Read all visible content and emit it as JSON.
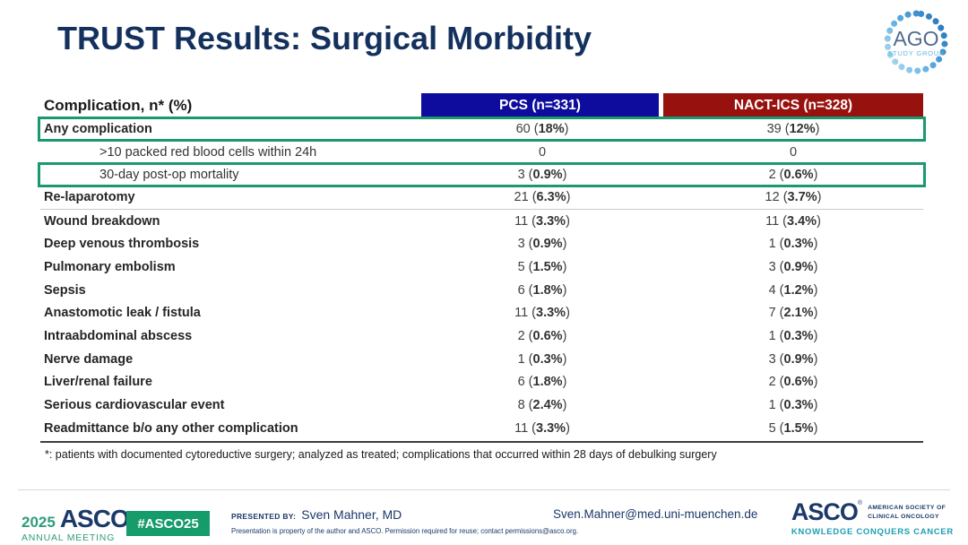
{
  "slide": {
    "title": "TRUST Results: Surgical Morbidity",
    "ago_logo": {
      "name": "AGO",
      "subtitle": "STUDY GROUP"
    }
  },
  "table": {
    "header": {
      "label": "Complication, n* (%)",
      "pcs": "PCS (n=331)",
      "nact": "NACT-ICS (n=328)"
    },
    "rows": [
      {
        "label": "Any complication",
        "pcs": "60 (18%)",
        "nact": "39 (12%)",
        "bold": true,
        "highlight": true
      },
      {
        "label": ">10 packed red blood cells within 24h",
        "pcs": "0",
        "nact": "0",
        "indent": true
      },
      {
        "label": "30-day post-op mortality",
        "pcs": "3 (0.9%)",
        "nact": "2 (0.6%)",
        "indent": true,
        "highlight": true
      },
      {
        "label": "Re-laparotomy",
        "pcs": "21 (6.3%)",
        "nact": "12 (3.7%)",
        "bold": true,
        "separator_below": true
      },
      {
        "label": "Wound breakdown",
        "pcs": "11 (3.3%)",
        "nact": "11 (3.4%)",
        "bold": true
      },
      {
        "label": "Deep venous thrombosis",
        "pcs": "3 (0.9%)",
        "nact": "1 (0.3%)",
        "bold": true
      },
      {
        "label": "Pulmonary embolism",
        "pcs": "5 (1.5%)",
        "nact": "3 (0.9%)",
        "bold": true
      },
      {
        "label": "Sepsis",
        "pcs": "6 (1.8%)",
        "nact": "4 (1.2%)",
        "bold": true
      },
      {
        "label": "Anastomotic leak / fistula",
        "pcs": "11 (3.3%)",
        "nact": "7 (2.1%)",
        "bold": true
      },
      {
        "label": "Intraabdominal abscess",
        "pcs": "2 (0.6%)",
        "nact": "1 (0.3%)",
        "bold": true
      },
      {
        "label": "Nerve damage",
        "pcs": "1 (0.3%)",
        "nact": "3 (0.9%)",
        "bold": true
      },
      {
        "label": "Liver/renal failure",
        "pcs": "6 (1.8%)",
        "nact": "2 (0.6%)",
        "bold": true
      },
      {
        "label": "Serious cardiovascular event",
        "pcs": "8 (2.4%)",
        "nact": "1 (0.3%)",
        "bold": true
      },
      {
        "label": "Readmittance b/o any other complication",
        "pcs": "11 (3.3%)",
        "nact": "5 (1.5%)",
        "bold": true
      }
    ],
    "footnote": "*: patients with documented cytoreductive surgery; analyzed as treated; complications that occurred within 28 days of debulking surgery"
  },
  "footer": {
    "meeting_logo": {
      "year": "2025",
      "name": "ASCO",
      "subtitle": "ANNUAL MEETING"
    },
    "hashtag": "#ASCO25",
    "presented_by_label": "PRESENTED BY:",
    "presenter": "Sven Mahner, MD",
    "disclaimer": "Presentation is property of the author and ASCO. Permission required for reuse; contact permissions@asco.org.",
    "email": "Sven.Mahner@med.uni-muenchen.de",
    "asco_logo": {
      "name": "ASCO",
      "society_line1": "AMERICAN SOCIETY OF",
      "society_line2": "CLINICAL ONCOLOGY",
      "tagline": "KNOWLEDGE CONQUERS CANCER"
    }
  },
  "colors": {
    "title_navy": "#14315E",
    "pcs_header_blue": "#0D0C9D",
    "nact_header_red": "#97120F",
    "highlight_green": "#1A9A6C",
    "badge_green": "#169B6B",
    "footer_navy": "#1B3969",
    "footer_green": "#2F9C7C",
    "tagline_teal": "#1E9FB2"
  }
}
